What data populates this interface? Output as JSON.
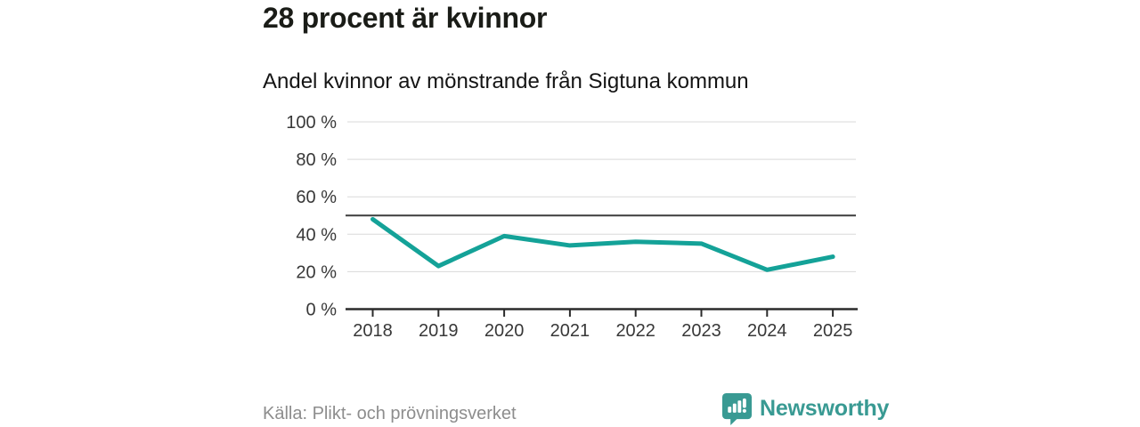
{
  "header": {
    "title": "28 procent är kvinnor",
    "subtitle": "Andel kvinnor av mönstrande från Sigtuna kommun"
  },
  "chart_data": {
    "type": "line",
    "title": "28 procent är kvinnor",
    "subtitle": "Andel kvinnor av mönstrande från Sigtuna kommun",
    "categories": [
      "2018",
      "2019",
      "2020",
      "2021",
      "2022",
      "2023",
      "2024",
      "2025"
    ],
    "series": [
      {
        "name": "Andel kvinnor av mönstrande",
        "values": [
          48,
          23,
          39,
          34,
          36,
          35,
          21,
          28
        ]
      }
    ],
    "unit": "%",
    "xlabel": "",
    "ylabel": "",
    "ylim": [
      0,
      100
    ],
    "yticks": [
      0,
      20,
      40,
      60,
      80,
      100
    ],
    "ytick_suffix": " %",
    "reference_line": 50,
    "grid": true,
    "legend_position": "none",
    "colors": {
      "line": "#14a298",
      "grid": "#d9d9d9",
      "axis": "#2b2b2b",
      "reference_line": "#3d3d3d",
      "tick_label": "#383838"
    }
  },
  "footer": {
    "source": "Källa: Plikt- och prövningsverket",
    "brand": "Newsworthy",
    "brand_color": "#399a93",
    "logo_icon": "bar-chart-speech-bubble-icon"
  }
}
